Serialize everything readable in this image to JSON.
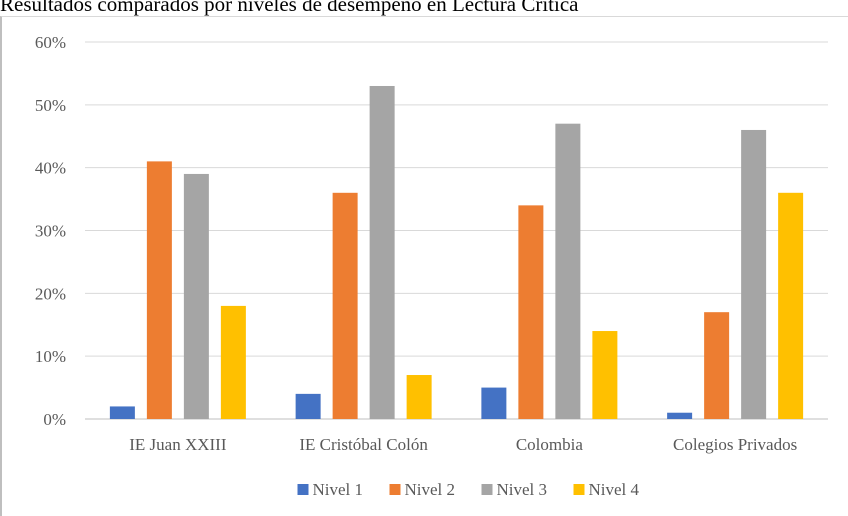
{
  "chart_data": {
    "type": "bar",
    "title": "Resultados comparados por niveles de desempeño en Lectura Crítica",
    "categories": [
      "IE Juan XXIII",
      "IE Cristóbal Colón",
      "Colombia",
      "Colegios Privados"
    ],
    "series": [
      {
        "name": "Nivel 1",
        "color": "#4472c4",
        "values": [
          2,
          4,
          5,
          1
        ]
      },
      {
        "name": "Nivel 2",
        "color": "#ed7d31",
        "values": [
          41,
          36,
          34,
          17
        ]
      },
      {
        "name": "Nivel 3",
        "color": "#a5a5a5",
        "values": [
          39,
          53,
          47,
          46
        ]
      },
      {
        "name": "Nivel 4",
        "color": "#ffc000",
        "values": [
          18,
          7,
          14,
          36
        ]
      }
    ],
    "ylim": [
      0,
      60
    ],
    "yticks": [
      "0%",
      "10%",
      "20%",
      "30%",
      "40%",
      "50%",
      "60%"
    ],
    "grid": true,
    "legend_position": "bottom",
    "xlabel": "",
    "ylabel": ""
  }
}
